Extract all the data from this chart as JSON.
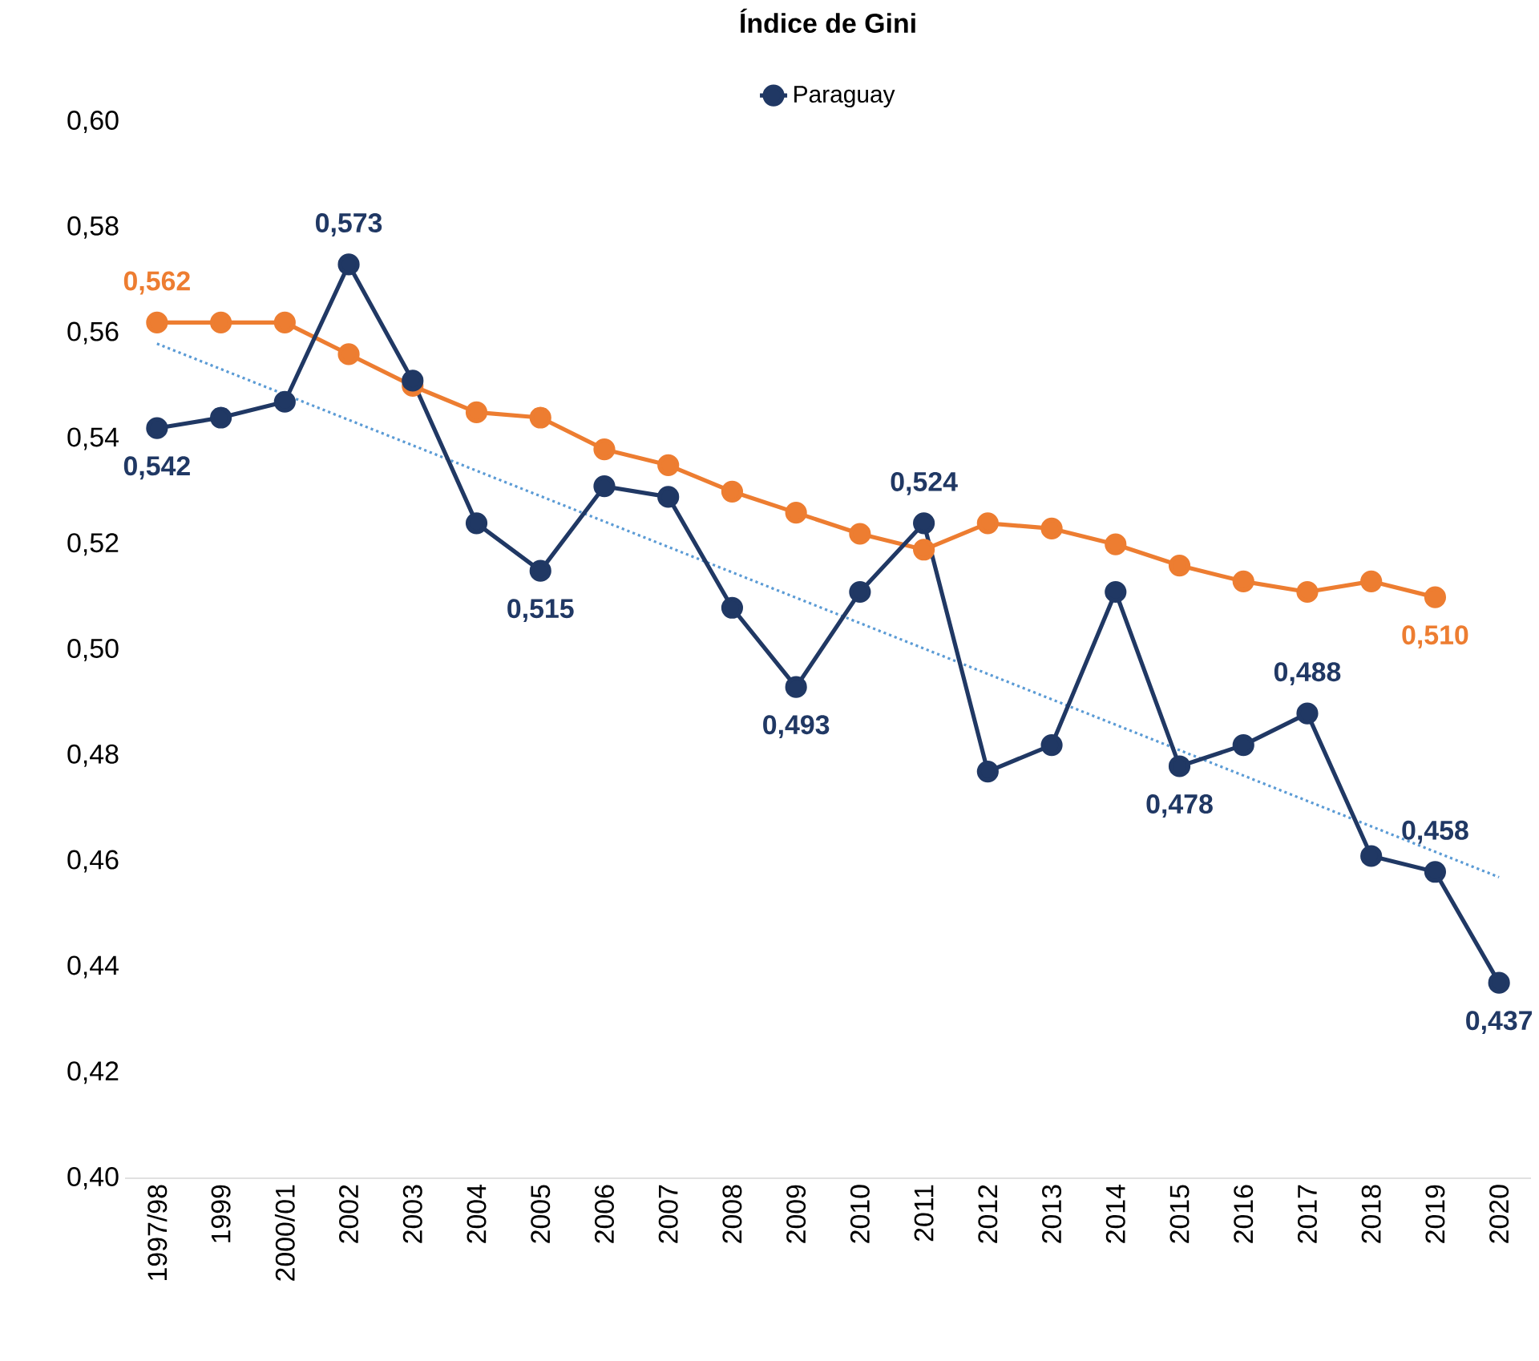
{
  "chart_data": {
    "type": "line",
    "title": "Índice de Gini",
    "categories": [
      "1997/98",
      "1999",
      "2000/01",
      "2002",
      "2003",
      "2004",
      "2005",
      "2006",
      "2007",
      "2008",
      "2009",
      "2010",
      "2011",
      "2012",
      "2013",
      "2014",
      "2015",
      "2016",
      "2017",
      "2018",
      "2019",
      "2020"
    ],
    "series": [
      {
        "name": "Paraguay",
        "color": "#203864",
        "values": [
          0.542,
          0.544,
          0.547,
          0.573,
          0.551,
          0.524,
          0.515,
          0.531,
          0.529,
          0.508,
          0.493,
          0.511,
          0.524,
          0.477,
          0.482,
          0.511,
          0.478,
          0.482,
          0.488,
          0.461,
          0.458,
          0.437
        ],
        "value_labels": [
          "0,542",
          null,
          null,
          "0,573",
          null,
          null,
          "0,515",
          null,
          null,
          null,
          "0,493",
          null,
          "0,524",
          null,
          null,
          null,
          "0,478",
          null,
          "0,488",
          null,
          "0,458",
          "0,437"
        ]
      },
      {
        "color": "#ed7d31",
        "values": [
          0.562,
          0.562,
          0.562,
          0.556,
          0.55,
          0.545,
          0.544,
          0.538,
          0.535,
          0.53,
          0.526,
          0.522,
          0.519,
          0.524,
          0.523,
          0.52,
          0.516,
          0.513,
          0.511,
          0.513,
          0.51,
          null
        ],
        "value_labels": [
          "0,562",
          null,
          null,
          null,
          null,
          null,
          null,
          null,
          null,
          null,
          null,
          null,
          null,
          null,
          null,
          null,
          null,
          null,
          null,
          null,
          "0,510",
          null
        ]
      },
      {
        "color": "#5b9bd5",
        "marker": "none",
        "line_style": "dotted",
        "values": [
          0.558,
          null,
          null,
          null,
          null,
          null,
          null,
          null,
          null,
          null,
          null,
          null,
          null,
          null,
          null,
          null,
          null,
          null,
          null,
          null,
          null,
          0.457
        ]
      }
    ],
    "ylim": [
      0.4,
      0.6
    ],
    "yticks": [
      {
        "value": 0.4,
        "label": "0,40"
      },
      {
        "value": 0.42,
        "label": "0,42"
      },
      {
        "value": 0.44,
        "label": "0,44"
      },
      {
        "value": 0.46,
        "label": "0,46"
      },
      {
        "value": 0.48,
        "label": "0,48"
      },
      {
        "value": 0.5,
        "label": "0,50"
      },
      {
        "value": 0.52,
        "label": "0,52"
      },
      {
        "value": 0.54,
        "label": "0,54"
      },
      {
        "value": 0.56,
        "label": "0,56"
      },
      {
        "value": 0.58,
        "label": "0,58"
      },
      {
        "value": 0.6,
        "label": "0,60"
      }
    ],
    "marker": "circle",
    "line_style": "solid",
    "grid": false,
    "legend": "top"
  }
}
